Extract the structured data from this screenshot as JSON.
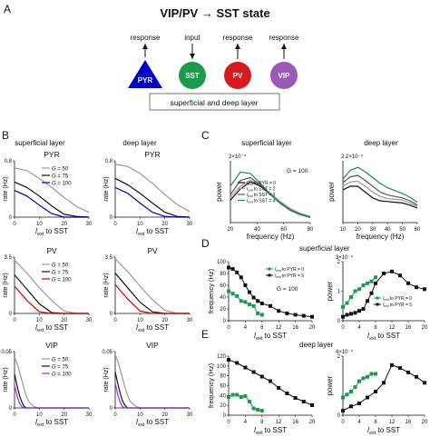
{
  "panel_labels": {
    "A": "A",
    "B": "B",
    "C": "C",
    "D": "D",
    "E": "E"
  },
  "panelA": {
    "title": "VIP/PV → SST state",
    "neurons": [
      {
        "label": "PYR",
        "shape": "triangle",
        "color": "#0000cc",
        "annotation": "response",
        "arrow": "out"
      },
      {
        "label": "SST",
        "shape": "circle",
        "color": "#1a9a4a",
        "annotation": "input",
        "arrow": "in"
      },
      {
        "label": "PV",
        "shape": "circle",
        "color": "#d71920",
        "annotation": "response",
        "arrow": "out"
      },
      {
        "label": "VIP",
        "shape": "circle",
        "color": "#9b59b6",
        "annotation": "response",
        "arrow": "out"
      }
    ],
    "layer_box_text": "superficial and deep layer"
  },
  "panelB": {
    "col_titles": [
      "superficial layer",
      "deep layer"
    ],
    "xlabel_main": "I",
    "xlabel_sub": "ext",
    "xlabel_rest": " to SST",
    "ylabel": "rate (Hz)",
    "legend_prefix": "G",
    "legend": [
      {
        "name": "G = 50",
        "value": "50",
        "color": "#9a9a9a"
      },
      {
        "name": "G = 75",
        "value": "75",
        "color": "#111111"
      }
    ],
    "rows": [
      {
        "cell": "PYR",
        "third_color": "#0000aa",
        "third_value": "100",
        "ylim": [
          0,
          0.8
        ],
        "yticks": [
          "0",
          "0.8"
        ],
        "xticks": [
          "0",
          "10",
          "20",
          "30"
        ]
      },
      {
        "cell": "PV",
        "third_color": "#cc0000",
        "third_value": "100",
        "ylim": [
          0,
          3.5
        ],
        "yticks": [
          "0",
          "3.5"
        ],
        "xticks": [
          "0",
          "10",
          "20",
          "30"
        ]
      },
      {
        "cell": "VIP",
        "third_color": "#9b30d0",
        "third_value": "100",
        "ylim": [
          0,
          0.05
        ],
        "yticks": [
          "0",
          "0.05"
        ],
        "xticks": [
          "0",
          "10",
          "20",
          "30"
        ]
      }
    ]
  },
  "panelC": {
    "col_titles": [
      "superficial layer",
      "deep layer"
    ],
    "xlabel": "frequency (Hz)",
    "ylabel": "power",
    "G_text": "G = 100",
    "legend_prefix": "I",
    "legend_sub": "ext",
    "legend": [
      {
        "name": "to PYR = 0",
        "color": "#111111"
      },
      {
        "name": "to SST = 2",
        "color": "#9a9a9a"
      },
      {
        "name": "to SST = 3",
        "color": "#555555"
      },
      {
        "name": "to SST = 4",
        "color": "#1a8a5a"
      }
    ],
    "exp_superficial": "2×10⁻⁴",
    "exp_deep": "2.2×10⁻⁴",
    "xticks_superficial": [
      "20",
      "40",
      "60",
      "80"
    ],
    "xticks_deep": [
      "10",
      "20",
      "30",
      "40",
      "50",
      "60"
    ]
  },
  "panelD": {
    "title": "superficial layer",
    "ylabel_left": "frequency (Hz)",
    "ylabel_right": "power",
    "xlabel_main": "I",
    "xlabel_sub": "ext",
    "xlabel_rest": " to SST",
    "G_text": "G = 100",
    "legend": [
      {
        "name": "to PYR = 0",
        "color": "#1a9a4a"
      },
      {
        "name": "to PYR = 5",
        "color": "#111111"
      }
    ],
    "yticks_left": [
      "0",
      "20",
      "40",
      "60",
      "80",
      "100"
    ],
    "xticks": [
      "0",
      "4",
      "8",
      "12",
      "16",
      "20"
    ],
    "yticks_right": [
      "0",
      "1",
      "2"
    ],
    "exp_right": "3×10⁻⁴"
  },
  "panelE": {
    "title": "deep layer",
    "ylabel_left": "frequency (Hz)",
    "ylabel_right": "power",
    "xlabel_main": "I",
    "xlabel_sub": "ext",
    "xlabel_rest": " to SST",
    "yticks_left": [
      "0",
      "20",
      "40",
      "60",
      "80",
      "100",
      "120"
    ],
    "xticks": [
      "0",
      "4",
      "8",
      "12",
      "16",
      "20"
    ],
    "yticks_right": [
      "0",
      "2"
    ],
    "exp_right": "4×10⁻⁴"
  },
  "chart_data": [
    {
      "type": "line",
      "panel": "B",
      "subplot": "PYR superficial",
      "x": [
        0,
        5,
        10,
        15,
        20,
        25,
        30
      ],
      "series": [
        {
          "name": "G = 50",
          "values": [
            0.7,
            0.66,
            0.55,
            0.42,
            0.28,
            0.15,
            0.07
          ]
        },
        {
          "name": "G = 75",
          "values": [
            0.5,
            0.42,
            0.3,
            0.16,
            0.04,
            0.01,
            0.0
          ]
        },
        {
          "name": "G = 100",
          "values": [
            0.38,
            0.3,
            0.17,
            0.05,
            0.0,
            0.0,
            0.0
          ]
        }
      ],
      "xlabel": "I_ext to SST",
      "ylabel": "rate (Hz)",
      "xlim": [
        0,
        30
      ],
      "ylim": [
        0,
        0.8
      ]
    },
    {
      "type": "line",
      "panel": "B",
      "subplot": "PYR deep",
      "x": [
        0,
        5,
        10,
        15,
        20,
        25,
        30
      ],
      "series": [
        {
          "name": "G = 50",
          "values": [
            0.75,
            0.72,
            0.62,
            0.48,
            0.32,
            0.18,
            0.08
          ]
        },
        {
          "name": "G = 75",
          "values": [
            0.55,
            0.46,
            0.34,
            0.2,
            0.07,
            0.01,
            0.0
          ]
        },
        {
          "name": "G = 100",
          "values": [
            0.42,
            0.34,
            0.2,
            0.07,
            0.01,
            0.0,
            0.0
          ]
        }
      ],
      "xlabel": "I_ext to SST",
      "ylabel": "rate (Hz)",
      "xlim": [
        0,
        30
      ],
      "ylim": [
        0,
        0.8
      ]
    },
    {
      "type": "line",
      "panel": "B",
      "subplot": "PV superficial",
      "x": [
        0,
        5,
        10,
        15,
        20,
        25,
        30
      ],
      "series": [
        {
          "name": "G = 50",
          "values": [
            3.3,
            2.5,
            1.6,
            0.8,
            0.15,
            0.0,
            0.0
          ]
        },
        {
          "name": "G = 75",
          "values": [
            2.4,
            1.5,
            0.6,
            0.05,
            0.0,
            0.0,
            0.0
          ]
        },
        {
          "name": "G = 100",
          "values": [
            1.7,
            0.8,
            0.1,
            0.0,
            0.0,
            0.0,
            0.0
          ]
        }
      ],
      "xlabel": "I_ext to SST",
      "ylabel": "rate (Hz)",
      "xlim": [
        0,
        30
      ],
      "ylim": [
        0,
        3.5
      ]
    },
    {
      "type": "line",
      "panel": "B",
      "subplot": "PV deep",
      "x": [
        0,
        5,
        10,
        15,
        20,
        25,
        30
      ],
      "series": [
        {
          "name": "G = 50",
          "values": [
            3.4,
            2.6,
            1.7,
            0.85,
            0.2,
            0.0,
            0.0
          ]
        },
        {
          "name": "G = 75",
          "values": [
            2.5,
            1.6,
            0.7,
            0.1,
            0.0,
            0.0,
            0.0
          ]
        },
        {
          "name": "G = 100",
          "values": [
            1.8,
            0.9,
            0.15,
            0.0,
            0.0,
            0.0,
            0.0
          ]
        }
      ],
      "xlabel": "I_ext to SST",
      "ylabel": "rate (Hz)",
      "xlim": [
        0,
        30
      ],
      "ylim": [
        0,
        3.5
      ]
    },
    {
      "type": "line",
      "panel": "B",
      "subplot": "VIP superficial",
      "x": [
        0,
        1,
        2,
        3,
        4,
        5,
        6,
        8,
        10,
        15,
        20,
        30
      ],
      "series": [
        {
          "name": "G = 50",
          "values": [
            0.045,
            0.04,
            0.032,
            0.024,
            0.016,
            0.009,
            0.005,
            0.001,
            0.0,
            0.0,
            0.0,
            0.0
          ]
        },
        {
          "name": "G = 75",
          "values": [
            0.03,
            0.02,
            0.011,
            0.005,
            0.001,
            0.0,
            0.0,
            0.0,
            0.0,
            0.0,
            0.0,
            0.0
          ]
        },
        {
          "name": "G = 100",
          "values": [
            0.02,
            0.011,
            0.004,
            0.001,
            0.0,
            0.0,
            0.0,
            0.0,
            0.0,
            0.0,
            0.0,
            0.0
          ]
        }
      ],
      "xlabel": "I_ext to SST",
      "ylabel": "rate (Hz)",
      "xlim": [
        0,
        30
      ],
      "ylim": [
        0,
        0.05
      ]
    },
    {
      "type": "line",
      "panel": "B",
      "subplot": "VIP deep",
      "x": [
        0,
        1,
        2,
        3,
        4,
        5,
        6,
        8,
        10,
        15,
        20,
        30
      ],
      "series": [
        {
          "name": "G = 50",
          "values": [
            0.047,
            0.042,
            0.034,
            0.026,
            0.018,
            0.011,
            0.006,
            0.002,
            0.0,
            0.0,
            0.0,
            0.0
          ]
        },
        {
          "name": "G = 75",
          "values": [
            0.032,
            0.022,
            0.013,
            0.006,
            0.002,
            0.0,
            0.0,
            0.0,
            0.0,
            0.0,
            0.0,
            0.0
          ]
        },
        {
          "name": "G = 100",
          "values": [
            0.022,
            0.012,
            0.005,
            0.001,
            0.0,
            0.0,
            0.0,
            0.0,
            0.0,
            0.0,
            0.0,
            0.0
          ]
        }
      ],
      "xlabel": "I_ext to SST",
      "ylabel": "rate (Hz)",
      "xlim": [
        0,
        30
      ],
      "ylim": [
        0,
        0.05
      ]
    },
    {
      "type": "line",
      "panel": "C",
      "subplot": "superficial layer",
      "x": [
        10,
        20,
        30,
        40,
        50,
        60,
        70,
        80,
        90
      ],
      "series": [
        {
          "name": "to PYR = 0",
          "values": [
            0.8,
            1.2,
            1.45,
            1.3,
            1.0,
            0.7,
            0.45,
            0.3,
            0.2
          ]
        },
        {
          "name": "to SST = 2",
          "values": [
            0.9,
            1.3,
            1.5,
            1.35,
            1.05,
            0.75,
            0.5,
            0.33,
            0.22
          ]
        },
        {
          "name": "to SST = 3",
          "values": [
            1.0,
            1.5,
            1.6,
            1.35,
            1.0,
            0.7,
            0.45,
            0.3,
            0.2
          ]
        },
        {
          "name": "to SST = 4",
          "values": [
            1.3,
            1.8,
            1.75,
            1.4,
            1.0,
            0.68,
            0.43,
            0.28,
            0.18
          ]
        }
      ],
      "xlabel": "frequency (Hz)",
      "ylabel": "power",
      "xlim": [
        10,
        90
      ],
      "ylim": [
        0,
        2.2
      ]
    },
    {
      "type": "line",
      "panel": "C",
      "subplot": "deep layer",
      "x": [
        10,
        15,
        20,
        25,
        30,
        35,
        40,
        45,
        50,
        55,
        60
      ],
      "series": [
        {
          "name": "to PYR = 0",
          "values": [
            1.85,
            1.9,
            1.9,
            1.82,
            1.74,
            1.7,
            1.69,
            1.68,
            1.67,
            1.64,
            1.6
          ]
        },
        {
          "name": "to SST = 2",
          "values": [
            1.9,
            1.96,
            1.97,
            1.9,
            1.82,
            1.76,
            1.73,
            1.72,
            1.71,
            1.67,
            1.62
          ]
        },
        {
          "name": "to SST = 3",
          "values": [
            1.95,
            2.03,
            2.05,
            1.98,
            1.9,
            1.82,
            1.78,
            1.76,
            1.74,
            1.7,
            1.64
          ]
        },
        {
          "name": "to SST = 4",
          "values": [
            2.0,
            2.12,
            2.16,
            2.1,
            2.02,
            1.94,
            1.88,
            1.84,
            1.8,
            1.75,
            1.68
          ]
        }
      ],
      "xlabel": "frequency (Hz)",
      "ylabel": "power",
      "xlim": [
        10,
        60
      ],
      "ylim": [
        1.4,
        2.25
      ]
    },
    {
      "type": "line",
      "panel": "D",
      "subplot": "superficial frequency",
      "series": [
        {
          "name": "to PYR = 0",
          "x": [
            0,
            1,
            2,
            3,
            4,
            5,
            6,
            7,
            8
          ],
          "values": [
            60,
            55,
            50,
            40,
            38,
            33,
            30,
            15,
            12
          ]
        },
        {
          "name": "to PYR = 5",
          "x": [
            0,
            1,
            2,
            3,
            4,
            5,
            6,
            7,
            8,
            10,
            12,
            14,
            16,
            18,
            20
          ],
          "values": [
            108,
            105,
            98,
            88,
            72,
            58,
            47,
            40,
            35,
            30,
            20,
            15,
            12,
            10,
            8
          ]
        }
      ],
      "xlabel": "I_ext to SST",
      "ylabel": "frequency (Hz)",
      "xlim": [
        0,
        20
      ],
      "ylim": [
        0,
        120
      ]
    },
    {
      "type": "line",
      "panel": "D",
      "subplot": "superficial power",
      "series": [
        {
          "name": "to PYR = 0",
          "x": [
            0,
            1,
            2,
            3,
            4,
            5,
            6,
            7,
            8
          ],
          "values": [
            0.7,
            0.9,
            1.2,
            1.5,
            1.6,
            1.8,
            1.9,
            2.0,
            2.2
          ]
        },
        {
          "name": "to PYR = 5",
          "x": [
            0,
            1,
            2,
            3,
            4,
            5,
            6,
            7,
            8,
            10,
            12,
            14,
            16,
            18,
            20
          ],
          "values": [
            0.2,
            0.3,
            0.35,
            0.4,
            0.5,
            0.6,
            1.0,
            1.4,
            1.9,
            2.4,
            2.5,
            2.3,
            1.9,
            1.7,
            1.6
          ]
        }
      ],
      "xlabel": "I_ext to SST",
      "ylabel": "power",
      "xlim": [
        0,
        20
      ],
      "ylim": [
        0,
        3
      ]
    },
    {
      "type": "line",
      "panel": "E",
      "subplot": "deep frequency",
      "series": [
        {
          "name": "to PYR = 0",
          "x": [
            0,
            1,
            2,
            3,
            4,
            5,
            6,
            7,
            8
          ],
          "values": [
            40,
            45,
            45,
            40,
            42,
            30,
            15,
            12,
            10
          ]
        },
        {
          "name": "to PYR = 5",
          "x": [
            0,
            2,
            4,
            6,
            8,
            10,
            12,
            14,
            16,
            18,
            20
          ],
          "values": [
            122,
            115,
            105,
            95,
            85,
            75,
            60,
            48,
            38,
            30,
            22
          ]
        }
      ],
      "xlabel": "I_ext to SST",
      "ylabel": "frequency (Hz)",
      "xlim": [
        0,
        20
      ],
      "ylim": [
        0,
        130
      ]
    },
    {
      "type": "line",
      "panel": "E",
      "subplot": "deep power",
      "series": [
        {
          "name": "to PYR = 0",
          "x": [
            0,
            1,
            2,
            3,
            4,
            5,
            6,
            7,
            8
          ],
          "values": [
            1.2,
            1.4,
            1.6,
            1.9,
            2.3,
            2.5,
            2.6,
            2.8,
            2.8
          ]
        },
        {
          "name": "to PYR = 5",
          "x": [
            0,
            2,
            4,
            6,
            8,
            10,
            12,
            14,
            16,
            18,
            20
          ],
          "values": [
            0.3,
            0.6,
            0.8,
            1.2,
            1.6,
            2.2,
            3.4,
            3.2,
            2.9,
            2.6,
            2.2
          ]
        }
      ],
      "xlabel": "I_ext to SST",
      "ylabel": "power",
      "xlim": [
        0,
        20
      ],
      "ylim": [
        0,
        4
      ]
    }
  ]
}
